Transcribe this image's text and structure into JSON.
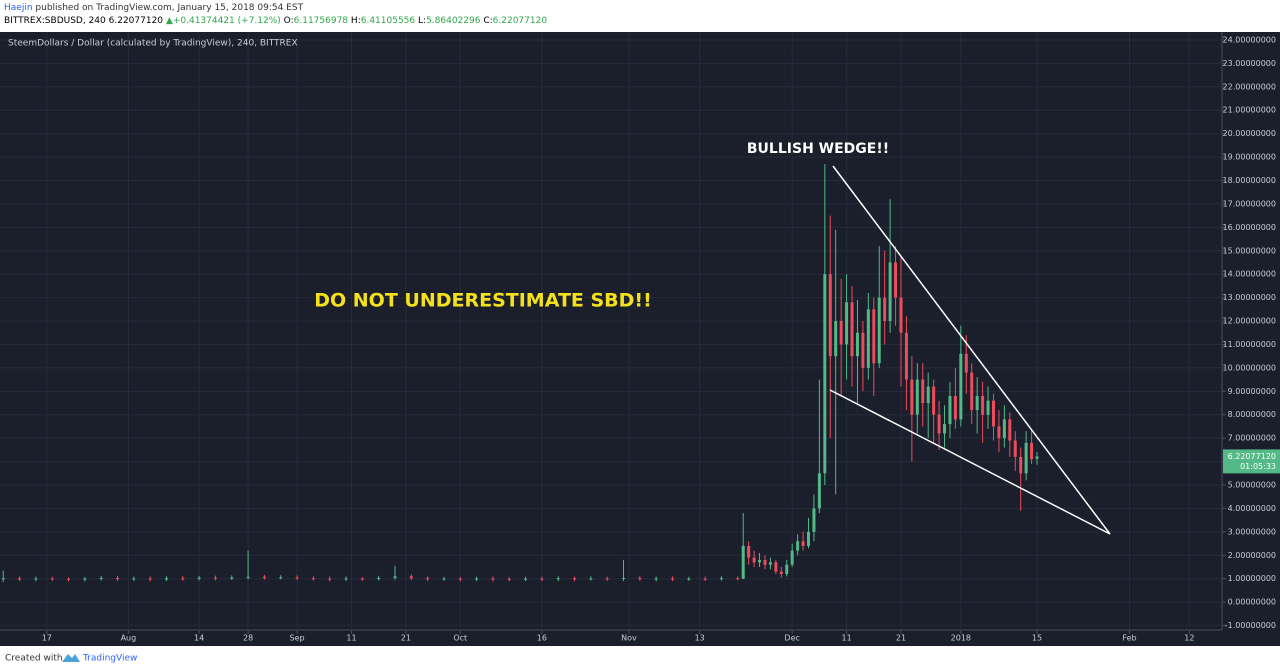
{
  "header": {
    "publisher": "Haejin",
    "published": "published on TradingView.com, January 15, 2018 09:54 EST",
    "symbol": "BITTREX:SBDUSD, 240",
    "last": "6.22077120",
    "change": "+0.41374421 (+7.12%)",
    "open_label": "O:",
    "open": "6.11756978",
    "high_label": "H:",
    "high": "6.41105556",
    "low_label": "L:",
    "low": "5.86402296",
    "close_label": "C:",
    "close": "6.22077120"
  },
  "chart_data": {
    "type": "candlestick",
    "legend_text": "SteemDollars / Dollar (calculated by TradingView), 240, BITTREX",
    "annotations": [
      "BULLISH WEDGE!!",
      "DO NOT UNDERESTIMATE SBD!!"
    ],
    "countdown": "01:05:33",
    "up_color": "#53b987",
    "down_color": "#eb4d5c",
    "grid": true,
    "x": [
      -8,
      -5,
      -2,
      1,
      4,
      7,
      10,
      13,
      16,
      19,
      22,
      25,
      28,
      31,
      34,
      37,
      40,
      43,
      46,
      49,
      52,
      55,
      58,
      61,
      64,
      67,
      70,
      73,
      76,
      79,
      82,
      85,
      88,
      91,
      94,
      97,
      100,
      103,
      106,
      109,
      112,
      115,
      118,
      121,
      124,
      127,
      128,
      129,
      130,
      131,
      132,
      133,
      134,
      135,
      136,
      137,
      138,
      139,
      140,
      141,
      142,
      143,
      144,
      145,
      146,
      147,
      148,
      149,
      150,
      151,
      152,
      153,
      154,
      155,
      156,
      157,
      158,
      159,
      160,
      161,
      162,
      163,
      164,
      165,
      166,
      167,
      168,
      169,
      170,
      171,
      172,
      173,
      174,
      175,
      176,
      177,
      178,
      179,
      180,
      181,
      182
    ],
    "open": [
      0.98,
      1.02,
      0.97,
      1.01,
      0.99,
      0.96,
      1.0,
      1.03,
      0.98,
      1.01,
      0.97,
      1.02,
      0.99,
      1.04,
      1.0,
      1.05,
      1.08,
      1.03,
      1.06,
      1.02,
      1.0,
      0.97,
      1.01,
      0.99,
      1.03,
      1.1,
      1.02,
      0.98,
      1.0,
      0.97,
      1.01,
      0.99,
      0.96,
      1.0,
      0.98,
      1.02,
      0.97,
      1.01,
      0.99,
      1.03,
      0.98,
      1.01,
      0.97,
      1.0,
      0.98,
      1.02,
      1.0,
      2.4,
      1.9,
      1.7,
      1.8,
      1.6,
      1.7,
      1.3,
      1.2,
      1.6,
      2.2,
      2.6,
      2.4,
      3.0,
      4.0,
      5.5,
      14.0,
      10.5,
      12.0,
      11.0,
      12.8,
      10.5,
      11.5,
      10.0,
      12.5,
      10.2,
      13.0,
      12.0,
      14.5,
      13.0,
      11.5,
      9.5,
      8.0,
      9.5,
      8.5,
      9.2,
      8.0,
      7.2,
      7.6,
      8.8,
      7.8,
      10.6,
      9.8,
      8.2,
      8.8,
      8.0,
      8.6,
      7.5,
      7.0,
      7.8,
      6.9,
      6.2,
      5.5,
      6.8,
      6.11756978
    ],
    "high": [
      1.35,
      1.1,
      1.09,
      1.09,
      1.07,
      1.08,
      1.11,
      1.12,
      1.09,
      1.1,
      1.1,
      1.11,
      1.12,
      1.13,
      1.14,
      2.2,
      1.16,
      1.15,
      1.14,
      1.1,
      1.09,
      1.1,
      1.08,
      1.12,
      1.55,
      1.18,
      1.1,
      1.08,
      1.07,
      1.09,
      1.1,
      1.07,
      1.08,
      1.09,
      1.1,
      1.09,
      1.1,
      1.09,
      1.8,
      1.11,
      1.09,
      1.1,
      1.08,
      1.09,
      1.1,
      1.1,
      3.8,
      2.6,
      2.2,
      2.1,
      2.0,
      1.9,
      1.8,
      1.5,
      1.8,
      2.5,
      2.9,
      3.0,
      3.6,
      4.6,
      9.5,
      18.7,
      16.5,
      15.9,
      13.8,
      14.0,
      13.5,
      12.9,
      12.0,
      13.2,
      13.0,
      15.2,
      15.0,
      17.2,
      15.2,
      14.8,
      12.2,
      10.5,
      10.2,
      10.2,
      9.8,
      9.5,
      8.6,
      8.4,
      9.4,
      10.0,
      11.8,
      11.4,
      10.2,
      9.6,
      9.4,
      9.2,
      8.9,
      8.2,
      8.4,
      8.1,
      7.3,
      6.6,
      7.3,
      7.4,
      6.41105556
    ],
    "low": [
      0.85,
      0.9,
      0.89,
      0.91,
      0.88,
      0.89,
      0.92,
      0.9,
      0.91,
      0.89,
      0.9,
      0.91,
      0.92,
      0.93,
      0.95,
      0.97,
      0.96,
      0.97,
      0.94,
      0.92,
      0.89,
      0.9,
      0.91,
      0.93,
      0.95,
      0.94,
      0.9,
      0.92,
      0.89,
      0.9,
      0.88,
      0.89,
      0.9,
      0.91,
      0.9,
      0.89,
      0.92,
      0.91,
      0.9,
      0.91,
      0.89,
      0.9,
      0.91,
      0.9,
      0.92,
      0.93,
      0.98,
      1.6,
      1.5,
      1.5,
      1.4,
      1.4,
      1.2,
      1.05,
      1.1,
      1.5,
      2.0,
      2.2,
      2.3,
      2.6,
      3.8,
      5.0,
      7.0,
      4.6,
      8.8,
      9.5,
      9.2,
      8.5,
      9.0,
      9.5,
      8.8,
      10.0,
      11.0,
      11.5,
      11.8,
      9.2,
      8.2,
      6.0,
      7.2,
      7.5,
      7.0,
      6.8,
      6.5,
      6.6,
      7.0,
      7.4,
      7.5,
      8.9,
      7.6,
      7.2,
      6.8,
      7.4,
      6.9,
      6.4,
      6.6,
      6.2,
      5.6,
      3.9,
      5.2,
      5.9,
      5.86402296
    ],
    "close": [
      1.02,
      0.97,
      1.01,
      0.99,
      0.96,
      1.0,
      1.03,
      0.98,
      1.01,
      0.97,
      1.02,
      0.99,
      1.04,
      1.0,
      1.05,
      1.08,
      1.03,
      1.06,
      1.02,
      1.0,
      0.97,
      1.01,
      0.99,
      1.03,
      1.1,
      1.02,
      0.98,
      1.0,
      0.97,
      1.01,
      0.99,
      0.96,
      1.0,
      0.98,
      1.02,
      0.97,
      1.01,
      0.99,
      1.03,
      0.98,
      1.01,
      0.97,
      1.0,
      0.98,
      1.02,
      1.0,
      2.4,
      1.9,
      1.7,
      1.8,
      1.6,
      1.7,
      1.3,
      1.2,
      1.6,
      2.2,
      2.6,
      2.4,
      3.0,
      4.0,
      5.5,
      14.0,
      10.5,
      12.0,
      11.0,
      12.8,
      10.5,
      11.5,
      10.0,
      12.5,
      10.2,
      13.0,
      12.0,
      14.5,
      13.0,
      11.5,
      9.5,
      8.0,
      9.5,
      8.5,
      9.2,
      8.0,
      7.2,
      7.6,
      8.8,
      7.8,
      10.6,
      9.8,
      8.2,
      8.8,
      8.0,
      8.6,
      7.5,
      7.0,
      7.8,
      6.9,
      6.2,
      5.5,
      6.8,
      6.1,
      6.2207712
    ],
    "xlim": [
      -8.6,
      216
    ],
    "xticks": [
      {
        "value": 0,
        "label": "17"
      },
      {
        "value": 15,
        "label": "Aug"
      },
      {
        "value": 28,
        "label": "14"
      },
      {
        "value": 37,
        "label": "28"
      },
      {
        "value": 46,
        "label": "Sep"
      },
      {
        "value": 56,
        "label": "11"
      },
      {
        "value": 66,
        "label": "21"
      },
      {
        "value": 76,
        "label": "Oct"
      },
      {
        "value": 91,
        "label": "16"
      },
      {
        "value": 107,
        "label": "Nov"
      },
      {
        "value": 120,
        "label": "13"
      },
      {
        "value": 137,
        "label": "Dec"
      },
      {
        "value": 147,
        "label": "11"
      },
      {
        "value": 157,
        "label": "21"
      },
      {
        "value": 168,
        "label": "2018"
      },
      {
        "value": 182,
        "label": "15"
      },
      {
        "value": 199,
        "label": "Feb"
      },
      {
        "value": 210,
        "label": "12"
      }
    ],
    "ylim": [
      -1.19,
      24.34
    ],
    "yticks": [
      {
        "value": -1,
        "label": "-1.00000000"
      },
      {
        "value": 0,
        "label": "0.00000000"
      },
      {
        "value": 1,
        "label": "1.00000000"
      },
      {
        "value": 2,
        "label": "2.00000000"
      },
      {
        "value": 3,
        "label": "3.00000000"
      },
      {
        "value": 4,
        "label": "4.00000000"
      },
      {
        "value": 5,
        "label": "5.00000000"
      },
      {
        "value": 6,
        "label": "6.00000000"
      },
      {
        "value": 7,
        "label": "7.00000000"
      },
      {
        "value": 8,
        "label": "8.00000000"
      },
      {
        "value": 9,
        "label": "9.00000000"
      },
      {
        "value": 10,
        "label": "10.00000000"
      },
      {
        "value": 11,
        "label": "11.00000000"
      },
      {
        "value": 12,
        "label": "12.00000000"
      },
      {
        "value": 13,
        "label": "13.00000000"
      },
      {
        "value": 14,
        "label": "14.00000000"
      },
      {
        "value": 15,
        "label": "15.00000000"
      },
      {
        "value": 16,
        "label": "16.00000000"
      },
      {
        "value": 17,
        "label": "17.00000000"
      },
      {
        "value": 18,
        "label": "18.00000000"
      },
      {
        "value": 19,
        "label": "19.00000000"
      },
      {
        "value": 20,
        "label": "20.00000000"
      },
      {
        "value": 21,
        "label": "21.00000000"
      },
      {
        "value": 22,
        "label": "22.00000000"
      },
      {
        "value": 23,
        "label": "23.00000000"
      },
      {
        "value": 24,
        "label": "24.00000000"
      }
    ]
  },
  "footer": {
    "created": "Created with",
    "brand": "TradingView"
  }
}
